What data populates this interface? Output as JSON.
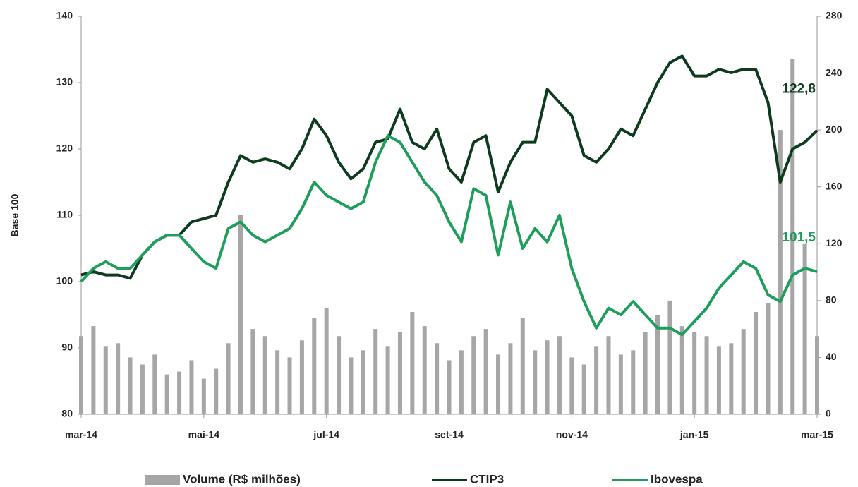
{
  "chart_data": {
    "type": "combo",
    "y_label": "Base 100",
    "categories": [
      "mar-14",
      null,
      null,
      null,
      null,
      null,
      null,
      null,
      null,
      null,
      "mai-14",
      null,
      null,
      null,
      null,
      null,
      null,
      null,
      null,
      null,
      "jul-14",
      null,
      null,
      null,
      null,
      null,
      null,
      null,
      null,
      null,
      "set-14",
      null,
      null,
      null,
      null,
      null,
      null,
      null,
      null,
      null,
      "nov-14",
      null,
      null,
      null,
      null,
      null,
      null,
      null,
      null,
      null,
      "jan-15",
      null,
      null,
      null,
      null,
      null,
      null,
      null,
      null,
      null,
      "mar-15"
    ],
    "ylim": [
      80,
      140
    ],
    "yticks": [
      80,
      90,
      100,
      110,
      120,
      130,
      140
    ],
    "y2lim": [
      0,
      280
    ],
    "y2ticks": [
      0,
      40,
      80,
      120,
      160,
      200,
      240,
      280
    ],
    "series": [
      {
        "name": "Volume (R$ milhões)",
        "type": "bar",
        "axis": "y2",
        "color": "#a6a6a6",
        "values": [
          55,
          62,
          48,
          50,
          40,
          35,
          42,
          28,
          30,
          38,
          25,
          32,
          50,
          140,
          60,
          55,
          45,
          40,
          52,
          68,
          75,
          55,
          40,
          45,
          60,
          48,
          58,
          72,
          62,
          50,
          38,
          45,
          55,
          60,
          42,
          50,
          68,
          45,
          52,
          55,
          40,
          35,
          48,
          55,
          42,
          45,
          58,
          70,
          80,
          62,
          58,
          55,
          48,
          50,
          60,
          72,
          78,
          200,
          250,
          120,
          55
        ]
      },
      {
        "name": "CTIP3",
        "type": "line",
        "color": "#0d3b1e",
        "end_label": "122,8",
        "values": [
          101,
          101.5,
          101,
          101,
          100.5,
          104,
          106,
          107,
          107,
          109,
          109.5,
          110,
          115,
          119,
          118,
          118.5,
          118,
          117,
          120,
          124.5,
          122,
          118,
          115.5,
          117,
          121,
          121.5,
          126,
          121,
          120,
          123,
          117,
          115,
          121,
          122,
          113.5,
          118,
          121,
          121,
          129,
          127,
          125,
          119,
          118,
          120,
          123,
          122,
          126,
          130,
          133,
          134,
          131,
          131,
          132,
          131.5,
          132,
          132,
          127,
          115,
          120,
          121,
          122.8
        ]
      },
      {
        "name": "Ibovespa",
        "type": "line",
        "color": "#1e9e5a",
        "end_label": "101,5",
        "values": [
          100,
          102,
          103,
          102,
          102,
          104,
          106,
          107,
          107,
          105,
          103,
          102,
          108,
          109,
          107,
          106,
          107,
          108,
          111,
          115,
          113,
          112,
          111,
          112,
          118,
          122,
          121,
          118,
          115,
          113,
          109,
          106,
          114,
          113,
          104,
          112,
          105,
          108,
          106,
          110,
          102,
          97,
          93,
          96,
          95,
          97,
          95,
          93,
          93,
          92,
          94,
          96,
          99,
          101,
          103,
          102,
          98,
          97,
          101,
          102,
          101.5
        ]
      }
    ]
  }
}
